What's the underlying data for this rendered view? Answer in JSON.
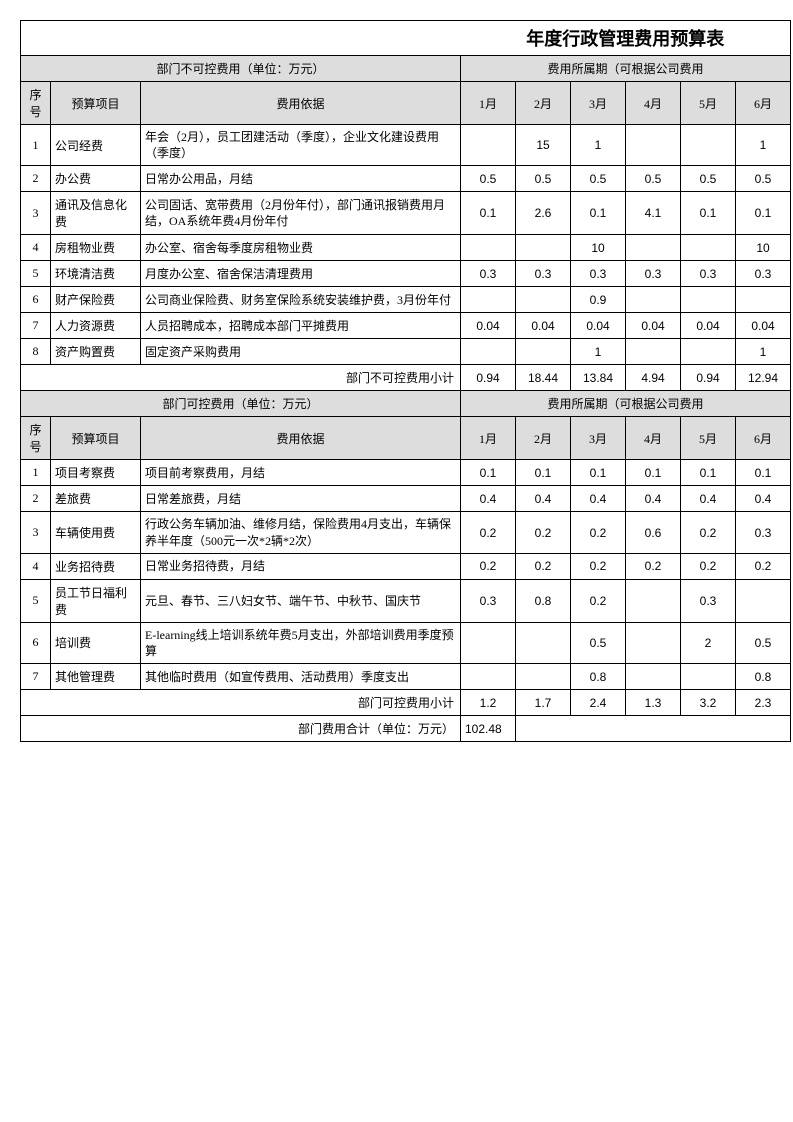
{
  "title": "年度行政管理费用预算表",
  "section1_header": "部门不可控费用（单位：万元）",
  "section2_header": "部门可控费用（单位：万元）",
  "period_header": "费用所属期（可根据公司费用",
  "cols": {
    "idx": "序号",
    "item": "预算项目",
    "basis": "费用依据",
    "m1": "1月",
    "m2": "2月",
    "m3": "3月",
    "m4": "4月",
    "m5": "5月",
    "m6": "6月"
  },
  "uncontrollable": [
    {
      "idx": "1",
      "item": "公司经费",
      "basis": "年会（2月），员工团建活动（季度），企业文化建设费用（季度）",
      "v": [
        "",
        "15",
        "1",
        "",
        "",
        "1"
      ]
    },
    {
      "idx": "2",
      "item": "办公费",
      "basis": "日常办公用品，月结",
      "v": [
        "0.5",
        "0.5",
        "0.5",
        "0.5",
        "0.5",
        "0.5"
      ]
    },
    {
      "idx": "3",
      "item": "通讯及信息化费",
      "basis": "公司固话、宽带费用（2月份年付），部门通讯报销费用月结，OA系统年费4月份年付",
      "v": [
        "0.1",
        "2.6",
        "0.1",
        "4.1",
        "0.1",
        "0.1"
      ]
    },
    {
      "idx": "4",
      "item": "房租物业费",
      "basis": "办公室、宿舍每季度房租物业费",
      "v": [
        "",
        "",
        "10",
        "",
        "",
        "10"
      ]
    },
    {
      "idx": "5",
      "item": "环境清洁费",
      "basis": "月度办公室、宿舍保洁清理费用",
      "v": [
        "0.3",
        "0.3",
        "0.3",
        "0.3",
        "0.3",
        "0.3"
      ]
    },
    {
      "idx": "6",
      "item": "财产保险费",
      "basis": "公司商业保险费、财务室保险系统安装维护费，3月份年付",
      "v": [
        "",
        "",
        "0.9",
        "",
        "",
        ""
      ]
    },
    {
      "idx": "7",
      "item": "人力资源费",
      "basis": "人员招聘成本，招聘成本部门平摊费用",
      "v": [
        "0.04",
        "0.04",
        "0.04",
        "0.04",
        "0.04",
        "0.04"
      ]
    },
    {
      "idx": "8",
      "item": "资产购置费",
      "basis": "固定资产采购费用",
      "v": [
        "",
        "",
        "1",
        "",
        "",
        "1"
      ]
    }
  ],
  "uncontrollable_subtotal_label": "部门不可控费用小计",
  "uncontrollable_subtotal": [
    "0.94",
    "18.44",
    "13.84",
    "4.94",
    "0.94",
    "12.94"
  ],
  "controllable": [
    {
      "idx": "1",
      "item": "项目考察费",
      "basis": "项目前考察费用，月结",
      "v": [
        "0.1",
        "0.1",
        "0.1",
        "0.1",
        "0.1",
        "0.1"
      ]
    },
    {
      "idx": "2",
      "item": "差旅费",
      "basis": "日常差旅费，月结",
      "v": [
        "0.4",
        "0.4",
        "0.4",
        "0.4",
        "0.4",
        "0.4"
      ]
    },
    {
      "idx": "3",
      "item": "车辆使用费",
      "basis": "行政公务车辆加油、维修月结，保险费用4月支出，车辆保养半年度（500元一次*2辆*2次）",
      "v": [
        "0.2",
        "0.2",
        "0.2",
        "0.6",
        "0.2",
        "0.3"
      ]
    },
    {
      "idx": "4",
      "item": "业务招待费",
      "basis": "日常业务招待费，月结",
      "v": [
        "0.2",
        "0.2",
        "0.2",
        "0.2",
        "0.2",
        "0.2"
      ]
    },
    {
      "idx": "5",
      "item": "员工节日福利费",
      "basis": "元旦、春节、三八妇女节、端午节、中秋节、国庆节",
      "v": [
        "0.3",
        "0.8",
        "0.2",
        "",
        "0.3",
        ""
      ]
    },
    {
      "idx": "6",
      "item": "培训费",
      "basis": "E-learning线上培训系统年费5月支出，外部培训费用季度预算",
      "v": [
        "",
        "",
        "0.5",
        "",
        "2",
        "0.5"
      ]
    },
    {
      "idx": "7",
      "item": "其他管理费",
      "basis": "其他临时费用（如宣传费用、活动费用）季度支出",
      "v": [
        "",
        "",
        "0.8",
        "",
        "",
        "0.8"
      ]
    }
  ],
  "controllable_subtotal_label": "部门可控费用小计",
  "controllable_subtotal": [
    "1.2",
    "1.7",
    "2.4",
    "1.3",
    "3.2",
    "2.3"
  ],
  "grandtotal_label": "部门费用合计（单位：万元）",
  "grandtotal": "102.48",
  "widths": {
    "idx": 30,
    "item": 90,
    "basis": 320,
    "month": 55
  }
}
